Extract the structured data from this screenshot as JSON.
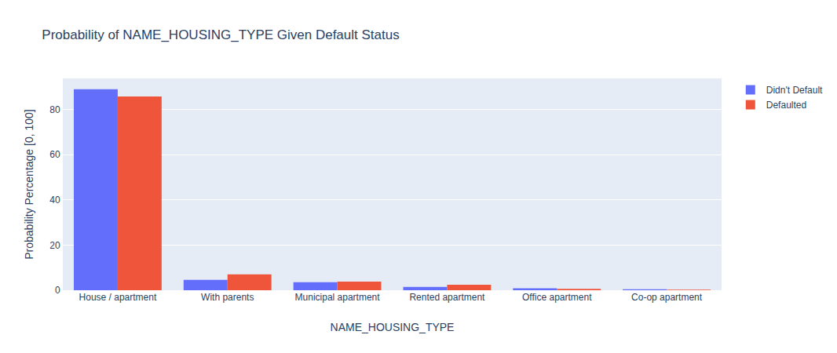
{
  "chart_data": {
    "type": "bar",
    "title": "Probability of NAME_HOUSING_TYPE Given Default Status",
    "x_label": "NAME_HOUSING_TYPE",
    "y_label": "Probability Percentage [0, 100]",
    "categories": [
      "House / apartment",
      "With parents",
      "Municipal apartment",
      "Rented apartment",
      "Office apartment",
      "Co-op apartment"
    ],
    "series": [
      {
        "name": "Didn't Default",
        "color": "#636efa",
        "values": [
          88.9,
          4.6,
          3.6,
          1.5,
          0.9,
          0.4
        ]
      },
      {
        "name": "Defaulted",
        "color": "#EF553B",
        "values": [
          85.7,
          7.0,
          3.8,
          2.4,
          0.6,
          0.3
        ]
      }
    ],
    "ylim": [
      0,
      93.7
    ],
    "yticks": [
      0,
      20,
      40,
      60,
      80
    ],
    "grid": true,
    "legend": "top right"
  }
}
